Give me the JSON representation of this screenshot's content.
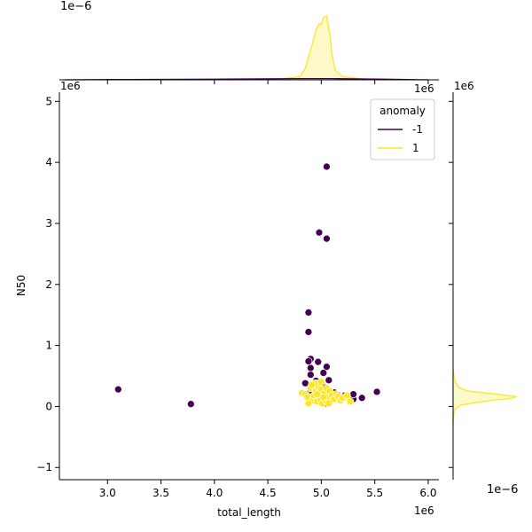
{
  "chart_data": {
    "type": "scatter",
    "xlabel": "total_length",
    "ylabel": "N50",
    "x_offset_label": "1e6",
    "y_offset_label": "1e6",
    "xlim": [
      2.55,
      6.1
    ],
    "ylim": [
      -1.2,
      5.15
    ],
    "x_ticks": [
      "3.0",
      "3.5",
      "4.0",
      "4.5",
      "5.0",
      "5.5",
      "6.0"
    ],
    "x_tick_values": [
      3.0,
      3.5,
      4.0,
      4.5,
      5.0,
      5.5,
      6.0
    ],
    "y_ticks": [
      "−1",
      "0",
      "1",
      "2",
      "3",
      "4",
      "5"
    ],
    "y_tick_values": [
      -1,
      0,
      1,
      2,
      3,
      4,
      5
    ],
    "legend": {
      "title": "anomaly",
      "placement": "top-right",
      "entries": [
        {
          "label": "-1",
          "color": "#440154"
        },
        {
          "label": "1",
          "color": "#fde725"
        }
      ]
    },
    "series": [
      {
        "name": "-1",
        "color": "#440154",
        "points": [
          [
            3.1,
            0.28
          ],
          [
            3.78,
            0.04
          ],
          [
            5.05,
            3.93
          ],
          [
            4.98,
            2.85
          ],
          [
            5.05,
            2.75
          ],
          [
            4.88,
            1.54
          ],
          [
            4.88,
            1.22
          ],
          [
            4.9,
            0.78
          ],
          [
            4.88,
            0.74
          ],
          [
            4.97,
            0.73
          ],
          [
            5.05,
            0.65
          ],
          [
            4.9,
            0.63
          ],
          [
            5.02,
            0.55
          ],
          [
            4.9,
            0.52
          ],
          [
            4.95,
            0.42
          ],
          [
            5.07,
            0.43
          ],
          [
            4.97,
            0.38
          ],
          [
            4.85,
            0.38
          ],
          [
            5.02,
            0.32
          ],
          [
            4.9,
            0.25
          ],
          [
            4.92,
            0.23
          ],
          [
            5.12,
            0.23
          ],
          [
            5.15,
            0.2
          ],
          [
            5.22,
            0.18
          ],
          [
            5.28,
            0.15
          ],
          [
            5.3,
            0.12
          ],
          [
            5.38,
            0.14
          ],
          [
            5.52,
            0.24
          ],
          [
            5.05,
            0.05
          ],
          [
            4.95,
            0.1
          ],
          [
            5.3,
            0.2
          ],
          [
            5.08,
            0.15
          ]
        ]
      },
      {
        "name": "1",
        "color": "#fde725",
        "points": [
          [
            4.82,
            0.22
          ],
          [
            4.85,
            0.2
          ],
          [
            4.87,
            0.15
          ],
          [
            4.9,
            0.3
          ],
          [
            4.92,
            0.1
          ],
          [
            4.93,
            0.18
          ],
          [
            4.95,
            0.25
          ],
          [
            4.96,
            0.08
          ],
          [
            4.97,
            0.33
          ],
          [
            4.98,
            0.2
          ],
          [
            4.99,
            0.12
          ],
          [
            5.0,
            0.28
          ],
          [
            5.01,
            0.05
          ],
          [
            5.02,
            0.18
          ],
          [
            5.03,
            0.22
          ],
          [
            5.04,
            0.1
          ],
          [
            5.05,
            0.3
          ],
          [
            5.06,
            0.15
          ],
          [
            5.08,
            0.25
          ],
          [
            5.1,
            0.18
          ],
          [
            5.12,
            0.12
          ],
          [
            5.14,
            0.2
          ],
          [
            5.16,
            0.16
          ],
          [
            5.18,
            0.1
          ],
          [
            5.2,
            0.14
          ],
          [
            5.24,
            0.18
          ],
          [
            5.27,
            0.08
          ],
          [
            4.88,
            0.05
          ],
          [
            4.94,
            0.38
          ],
          [
            5.0,
            0.4
          ],
          [
            4.91,
            0.35
          ],
          [
            5.07,
            0.05
          ],
          [
            4.96,
            0.2
          ],
          [
            5.02,
            0.15
          ]
        ]
      }
    ],
    "top_marginal": {
      "offset_label": "1e−6",
      "color": "#fde725",
      "curve": [
        [
          4.3,
          0.0
        ],
        [
          4.6,
          0.01
        ],
        [
          4.8,
          0.05
        ],
        [
          4.85,
          0.18
        ],
        [
          4.88,
          0.35
        ],
        [
          4.92,
          0.58
        ],
        [
          4.95,
          0.78
        ],
        [
          4.98,
          0.88
        ],
        [
          5.0,
          0.86
        ],
        [
          5.02,
          0.97
        ],
        [
          5.05,
          1.0
        ],
        [
          5.08,
          0.72
        ],
        [
          5.1,
          0.4
        ],
        [
          5.13,
          0.15
        ],
        [
          5.2,
          0.05
        ],
        [
          5.3,
          0.03
        ],
        [
          5.4,
          0.01
        ],
        [
          5.6,
          0.0
        ]
      ],
      "curve_neg": [
        [
          2.6,
          0.0
        ],
        [
          3.2,
          0.005
        ],
        [
          4.0,
          0.01
        ],
        [
          4.8,
          0.02
        ],
        [
          5.1,
          0.02
        ],
        [
          5.6,
          0.01
        ],
        [
          6.0,
          0.0
        ]
      ]
    },
    "right_marginal": {
      "offset_label": "1e−6",
      "color": "#fde725",
      "curve": [
        [
          -0.3,
          0.0
        ],
        [
          -0.05,
          0.02
        ],
        [
          0.02,
          0.12
        ],
        [
          0.05,
          0.28
        ],
        [
          0.1,
          0.6
        ],
        [
          0.13,
          0.9
        ],
        [
          0.16,
          1.0
        ],
        [
          0.2,
          0.7
        ],
        [
          0.25,
          0.25
        ],
        [
          0.3,
          0.1
        ],
        [
          0.4,
          0.03
        ],
        [
          0.6,
          0.0
        ]
      ]
    }
  }
}
